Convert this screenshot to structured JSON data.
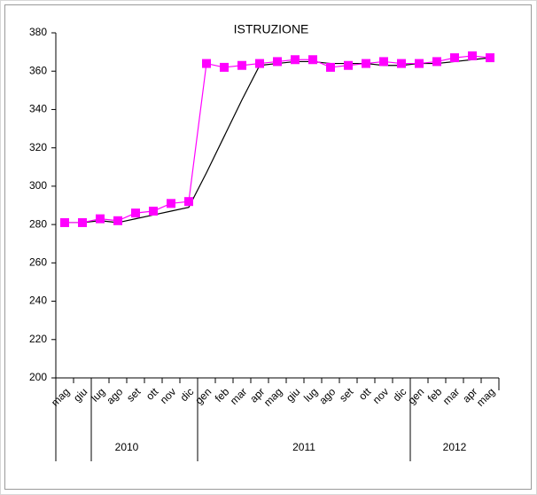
{
  "chart_data": {
    "type": "line",
    "title": "ISTRUZIONE",
    "groups": [
      {
        "label": "2010",
        "categories": [
          "mag",
          "giu",
          "lug",
          "ago",
          "set",
          "ott",
          "nov",
          "dic"
        ]
      },
      {
        "label": "2011",
        "categories": [
          "gen",
          "feb",
          "mar",
          "apr",
          "mag",
          "giu",
          "lug",
          "ago",
          "set",
          "ott",
          "nov",
          "dic"
        ]
      },
      {
        "label": "2012",
        "categories": [
          "gen",
          "feb",
          "mar",
          "apr",
          "mag"
        ]
      }
    ],
    "series": [
      {
        "color": "#000000",
        "marker": "none",
        "values": [
          281,
          281,
          282,
          281,
          283,
          285,
          287,
          289,
          307,
          326,
          345,
          363,
          364,
          365,
          365,
          364,
          364,
          364,
          363,
          363,
          364,
          364,
          365,
          366,
          367
        ]
      },
      {
        "color": "#ff00ff",
        "marker": "square",
        "values": [
          281,
          281,
          283,
          282,
          286,
          287,
          291,
          292,
          364,
          362,
          363,
          364,
          365,
          366,
          366,
          362,
          363,
          364,
          365,
          364,
          364,
          365,
          367,
          368,
          367
        ]
      }
    ],
    "ylim": [
      200,
      380
    ],
    "yticks": [
      200,
      220,
      240,
      260,
      280,
      300,
      320,
      340,
      360,
      380
    ]
  }
}
